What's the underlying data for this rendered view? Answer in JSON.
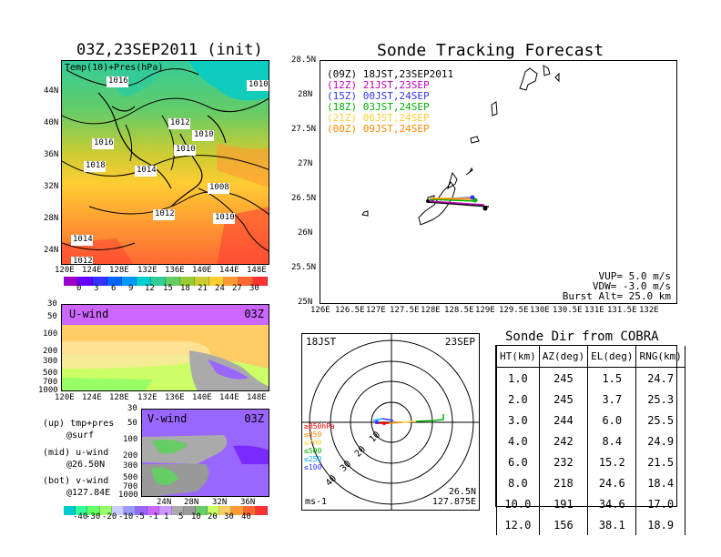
{
  "left_title": "03Z,23SEP2011 (init)",
  "right_title": "Sonde Tracking Forecast",
  "colors": {
    "temp_scale": [
      "#9900cc",
      "#6600ff",
      "#3333ff",
      "#0066ff",
      "#0099ff",
      "#00cccc",
      "#33cc99",
      "#66cc66",
      "#99cc33",
      "#cccc33",
      "#ffcc33",
      "#ff9933",
      "#ff6633",
      "#ff3333"
    ],
    "wind_scale": [
      "#00cccc",
      "#33ff99",
      "#66ff66",
      "#99ff66",
      "#ccccff",
      "#9999ff",
      "#9966ff",
      "#cc66ff",
      "#cc99ff",
      "#aaaaaa",
      "#999999",
      "#66cc66",
      "#ccff66",
      "#ffcc66",
      "#ff9933",
      "#ff6633",
      "#ff3333"
    ],
    "t09": "#000000",
    "t12": "#c000c0",
    "t15": "#3333ff",
    "t18": "#00b000",
    "t21": "#ffcc33",
    "t00": "#ff8800"
  },
  "map_panel": {
    "label": "Temp(10)+Pres(hPa)",
    "lat_labels": [
      "44N",
      "40N",
      "36N",
      "32N",
      "28N",
      "24N"
    ],
    "lon_labels": [
      "120E",
      "124E",
      "128E",
      "132E",
      "136E",
      "140E",
      "144E",
      "148E"
    ],
    "pressure_labels": [
      "1016",
      "1010",
      "1012",
      "1016",
      "1010",
      "1010",
      "1018",
      "1014",
      "1008",
      "1012",
      "1010",
      "1014",
      "1012"
    ],
    "colorbar_labels": [
      "0",
      "3",
      "6",
      "9",
      "12",
      "15",
      "18",
      "21",
      "24",
      "27",
      "30"
    ]
  },
  "uwind_panel": {
    "label": "U-wind",
    "time": "03Z",
    "y_labels": [
      "30",
      "50",
      "100",
      "200",
      "300",
      "500",
      "700",
      "1000"
    ],
    "x_labels": [
      "120E",
      "124E",
      "128E",
      "132E",
      "136E",
      "140E",
      "144E",
      "148E"
    ]
  },
  "vwind_panel": {
    "label": "V-wind",
    "time": "03Z",
    "y_labels": [
      "30",
      "50",
      "100",
      "200",
      "300",
      "500",
      "700",
      "1000"
    ],
    "x_labels": [
      "24N",
      "28N",
      "32N",
      "36N"
    ],
    "colorbar_labels": [
      "-40",
      "-30",
      "-20",
      "-10",
      "-5",
      "-1",
      "1",
      "5",
      "10",
      "20",
      "30",
      "40"
    ]
  },
  "legend_notes": [
    {
      "line1": "(up) tmp+pres",
      "line2": "@surf"
    },
    {
      "line1": "(mid) u-wind",
      "line2": "@26.50N"
    },
    {
      "line1": "(bot) v-wind",
      "line2": "@127.84E"
    }
  ],
  "track_panel": {
    "lat_labels": [
      "28.5N",
      "28N",
      "27.5N",
      "27N",
      "26.5N",
      "26N",
      "25.5N",
      "25N"
    ],
    "lon_labels": [
      "126E",
      "126.5E",
      "127E",
      "127.5E",
      "128E",
      "128.5E",
      "129E",
      "129.5E",
      "130E",
      "130.5E",
      "131E",
      "131.5E",
      "132E"
    ],
    "legend": [
      {
        "code": "(09Z)",
        "text": "18JST,23SEP2011",
        "color": "#000000"
      },
      {
        "code": "(12Z)",
        "text": "21JST,23SEP",
        "color": "#c000c0"
      },
      {
        "code": "(15Z)",
        "text": "00JST,24SEP",
        "color": "#3333ff"
      },
      {
        "code": "(18Z)",
        "text": "03JST,24SEP",
        "color": "#00b000"
      },
      {
        "code": "(21Z)",
        "text": "06JST,24SEP",
        "color": "#ffcc33"
      },
      {
        "code": "(00Z)",
        "text": "09JST,24SEP",
        "color": "#ff8800"
      }
    ],
    "params": [
      "VUP=  5.0 m/s",
      "VDW= -3.0 m/s",
      "Burst Alt= 25.0 km"
    ]
  },
  "polar_panel": {
    "time_label": "18JST",
    "date_label": "23SEP",
    "range_labels": [
      "10",
      "20",
      "30",
      "40"
    ],
    "levels": [
      {
        "text": "≥850hPa",
        "color": "#ff0000"
      },
      {
        "text": "≤850",
        "color": "#ff8800"
      },
      {
        "text": "≤700",
        "color": "#ffcc33"
      },
      {
        "text": "≤500",
        "color": "#00b000"
      },
      {
        "text": "≤250",
        "color": "#00aaff"
      },
      {
        "text": "≤100",
        "color": "#3333ff"
      }
    ],
    "unit": "ms-1",
    "loc_lat": "26.5N",
    "loc_lon": "127.875E"
  },
  "sonde_table": {
    "title": "Sonde Dir from COBRA",
    "headers": [
      "HT(km)",
      "AZ(deg)",
      "EL(deg)",
      "RNG(km)"
    ],
    "rows": [
      [
        "1.0",
        "245",
        "1.5",
        "24.7"
      ],
      [
        "2.0",
        "245",
        "3.7",
        "25.3"
      ],
      [
        "3.0",
        "244",
        "6.0",
        "25.5"
      ],
      [
        "4.0",
        "242",
        "8.4",
        "24.9"
      ],
      [
        "6.0",
        "232",
        "15.2",
        "21.5"
      ],
      [
        "8.0",
        "218",
        "24.6",
        "18.4"
      ],
      [
        "10.0",
        "191",
        "34.6",
        "17.0"
      ],
      [
        "12.0",
        "156",
        "38.1",
        "18.9"
      ]
    ]
  }
}
